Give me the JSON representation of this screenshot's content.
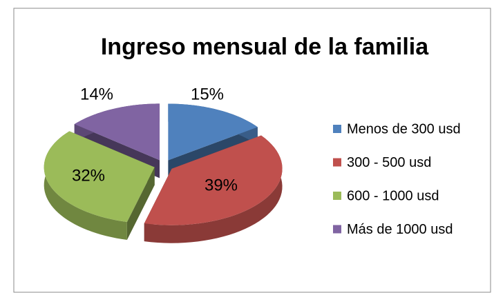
{
  "chart_data": {
    "type": "pie3d",
    "title": "Ingreso mensual de la familia",
    "categories": [
      "Menos de 300 usd",
      "300 - 500 usd",
      "600 - 1000 usd",
      "Más de 1000 usd"
    ],
    "values": [
      15,
      39,
      32,
      14
    ],
    "value_labels": [
      "15%",
      "39%",
      "32%",
      "14%"
    ],
    "colors": [
      "#4f81bd",
      "#c0504d",
      "#9bbb59",
      "#8064a2"
    ],
    "legend": "right"
  }
}
